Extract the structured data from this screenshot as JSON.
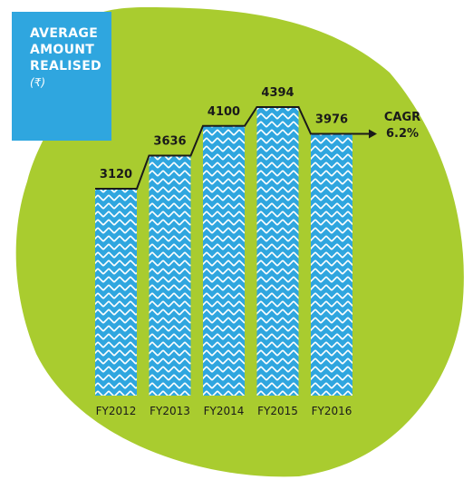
{
  "title": {
    "lines": [
      "AVERAGE",
      "AMOUNT",
      "REALISED"
    ],
    "unit": "(₹)"
  },
  "cagr": {
    "label": "CAGR",
    "value": "6.2%"
  },
  "colors": {
    "background_blob": "#a9cc2f",
    "title_box": "#2fa6df",
    "bar_fill": "#2fa6df",
    "bar_stripe": "#ffffff",
    "connector_line": "#1a1a1a"
  },
  "chart_data": {
    "type": "bar",
    "title": "AVERAGE AMOUNT REALISED (₹)",
    "categories": [
      "FY2012",
      "FY2013",
      "FY2014",
      "FY2015",
      "FY2016"
    ],
    "values": [
      3120,
      3636,
      4100,
      4394,
      3976
    ],
    "value_labels": [
      "3120",
      "3636",
      "4100",
      "4394",
      "3976"
    ],
    "xlabel": "",
    "ylabel": "",
    "ylim": [
      0,
      4700
    ],
    "grid": false,
    "legend": "none",
    "connector": "step line linking bar tops, ending in arrow",
    "annotation": "CAGR 6.2%"
  }
}
